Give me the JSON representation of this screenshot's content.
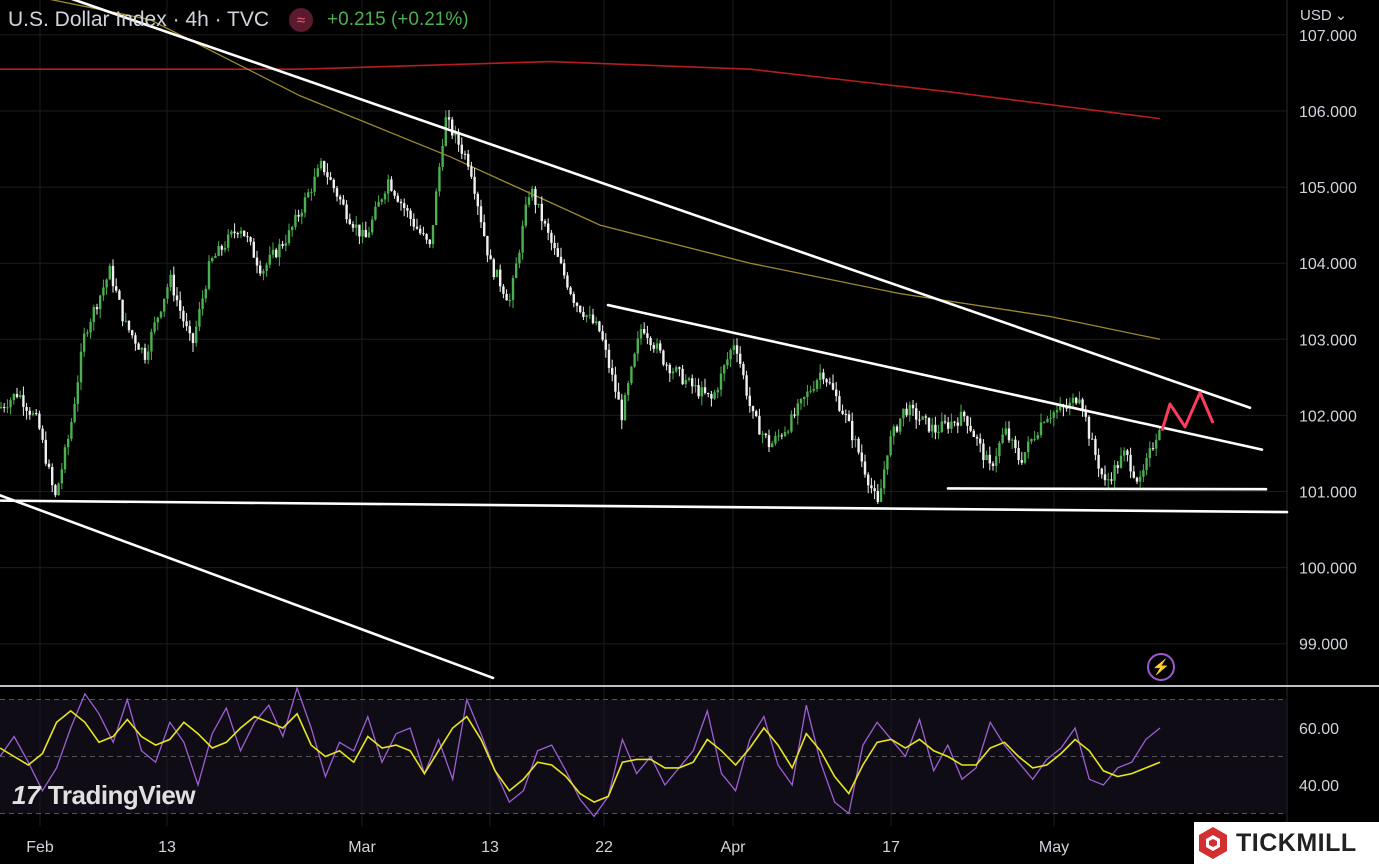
{
  "header": {
    "title": "U.S. Dollar Index · 4h · TVC",
    "change": "+0.215 (+0.21%)"
  },
  "currency_selector": {
    "label": "USD",
    "icon": "chevron-down-icon"
  },
  "branding": {
    "tradingview": "TradingView",
    "broker": "TICKMILL"
  },
  "colors": {
    "background": "#000000",
    "up_candle": "#4caf50",
    "down_candle": "#f0f0f0",
    "ma_long": "#b71c1c",
    "ma_mid": "#9c8a2e",
    "trendline": "#ffffff",
    "projection": "#ff3b5c",
    "rsi_line": "#9c5fd4",
    "rsi_ma": "#e6e61a",
    "change": "#4caf50"
  },
  "chart_data": [
    {
      "type": "candlestick",
      "title": "U.S. Dollar Index · 4h · TVC",
      "x_tick_labels": [
        "Feb",
        "13",
        "Mar",
        "13",
        "22",
        "Apr",
        "17",
        "May"
      ],
      "y_tick_labels": [
        "107.000",
        "106.000",
        "105.000",
        "104.000",
        "103.000",
        "102.000",
        "101.000",
        "100.000",
        "99.000"
      ],
      "ylim": [
        98.4,
        107.3
      ],
      "grid": true,
      "price_path": [
        [
          0,
          102.1
        ],
        [
          18,
          102.3
        ],
        [
          38,
          101.9
        ],
        [
          55,
          100.9
        ],
        [
          70,
          101.8
        ],
        [
          85,
          103.1
        ],
        [
          110,
          103.9
        ],
        [
          125,
          103.2
        ],
        [
          145,
          102.8
        ],
        [
          170,
          103.8
        ],
        [
          192,
          102.9
        ],
        [
          210,
          104.0
        ],
        [
          240,
          104.5
        ],
        [
          262,
          103.9
        ],
        [
          290,
          104.4
        ],
        [
          322,
          105.3
        ],
        [
          345,
          104.7
        ],
        [
          365,
          104.3
        ],
        [
          388,
          105.1
        ],
        [
          410,
          104.6
        ],
        [
          430,
          104.2
        ],
        [
          445,
          105.9
        ],
        [
          470,
          105.3
        ],
        [
          490,
          104.0
        ],
        [
          510,
          103.5
        ],
        [
          530,
          105.0
        ],
        [
          550,
          104.3
        ],
        [
          575,
          103.5
        ],
        [
          600,
          103.1
        ],
        [
          622,
          102.0
        ],
        [
          642,
          103.2
        ],
        [
          665,
          102.7
        ],
        [
          690,
          102.4
        ],
        [
          712,
          102.2
        ],
        [
          735,
          103.0
        ],
        [
          752,
          102.0
        ],
        [
          770,
          101.6
        ],
        [
          790,
          101.9
        ],
        [
          822,
          102.6
        ],
        [
          845,
          102.0
        ],
        [
          862,
          101.4
        ],
        [
          878,
          100.8
        ],
        [
          888,
          101.6
        ],
        [
          905,
          102.1
        ],
        [
          935,
          101.8
        ],
        [
          965,
          102.0
        ],
        [
          990,
          101.3
        ],
        [
          1005,
          101.8
        ],
        [
          1020,
          101.4
        ],
        [
          1045,
          102.0
        ],
        [
          1068,
          102.1
        ],
        [
          1080,
          102.3
        ],
        [
          1090,
          101.7
        ],
        [
          1105,
          101.1
        ],
        [
          1125,
          101.5
        ],
        [
          1140,
          101.1
        ],
        [
          1160,
          101.9
        ]
      ],
      "moving_averages": [
        {
          "points": [
            [
              0,
              106.55
            ],
            [
              300,
              106.55
            ],
            [
              550,
              106.65
            ],
            [
              750,
              106.55
            ],
            [
              950,
              106.25
            ],
            [
              1160,
              105.9
            ]
          ]
        },
        {
          "points": [
            [
              0,
              107.6
            ],
            [
              150,
              107.2
            ],
            [
              300,
              106.2
            ],
            [
              450,
              105.4
            ],
            [
              600,
              104.5
            ],
            [
              750,
              104.0
            ],
            [
              900,
              103.6
            ],
            [
              1050,
              103.3
            ],
            [
              1160,
              103.0
            ]
          ]
        }
      ],
      "trendlines": [
        {
          "points": [
            [
              0,
              107.8
            ],
            [
              1250,
              102.1
            ]
          ]
        },
        {
          "points": [
            [
              608,
              103.45
            ],
            [
              1262,
              101.55
            ]
          ]
        },
        {
          "points": [
            [
              0,
              100.88
            ],
            [
              1287,
              100.73
            ]
          ]
        },
        {
          "points": [
            [
              948,
              101.04
            ],
            [
              1266,
              101.03
            ]
          ]
        },
        {
          "points": [
            [
              0,
              100.95
            ],
            [
              493,
              98.55
            ]
          ]
        }
      ],
      "projection": {
        "points": [
          [
            1162,
            101.8
          ],
          [
            1170,
            102.15
          ],
          [
            1185,
            101.85
          ],
          [
            1200,
            102.3
          ],
          [
            1213,
            101.9
          ]
        ]
      }
    },
    {
      "type": "line",
      "title": "RSI",
      "y_tick_labels": [
        "60.00",
        "40.00"
      ],
      "ylim": [
        27,
        73
      ],
      "levels": [
        70,
        50,
        30
      ],
      "series": [
        {
          "values": [
            50,
            57,
            48,
            38,
            46,
            60,
            72,
            65,
            55,
            70,
            52,
            48,
            62,
            55,
            40,
            58,
            67,
            52,
            62,
            68,
            57,
            74,
            60,
            43,
            55,
            52,
            64,
            48,
            58,
            60,
            44,
            56,
            42,
            70,
            58,
            45,
            34,
            38,
            52,
            54,
            45,
            35,
            29,
            36,
            56,
            44,
            50,
            40,
            46,
            52,
            66,
            44,
            38,
            56,
            64,
            47,
            40,
            68,
            48,
            34,
            30,
            54,
            62,
            56,
            50,
            63,
            45,
            54,
            42,
            46,
            62,
            54,
            48,
            42,
            49,
            53,
            60,
            42,
            40,
            46,
            48,
            56,
            60
          ]
        },
        {
          "values": [
            53,
            50,
            47,
            51,
            62,
            66,
            62,
            55,
            57,
            63,
            57,
            54,
            56,
            62,
            58,
            53,
            55,
            60,
            64,
            62,
            60,
            65,
            54,
            50,
            52,
            48,
            57,
            53,
            54,
            52,
            44,
            52,
            60,
            64,
            56,
            45,
            38,
            42,
            48,
            47,
            43,
            37,
            34,
            36,
            48,
            49,
            49,
            46,
            46,
            48,
            56,
            52,
            47,
            53,
            60,
            54,
            46,
            58,
            52,
            43,
            37,
            47,
            55,
            56,
            53,
            56,
            52,
            50,
            47,
            47,
            53,
            55,
            50,
            46,
            47,
            51,
            56,
            52,
            45,
            43,
            44,
            46,
            48
          ]
        }
      ]
    }
  ]
}
